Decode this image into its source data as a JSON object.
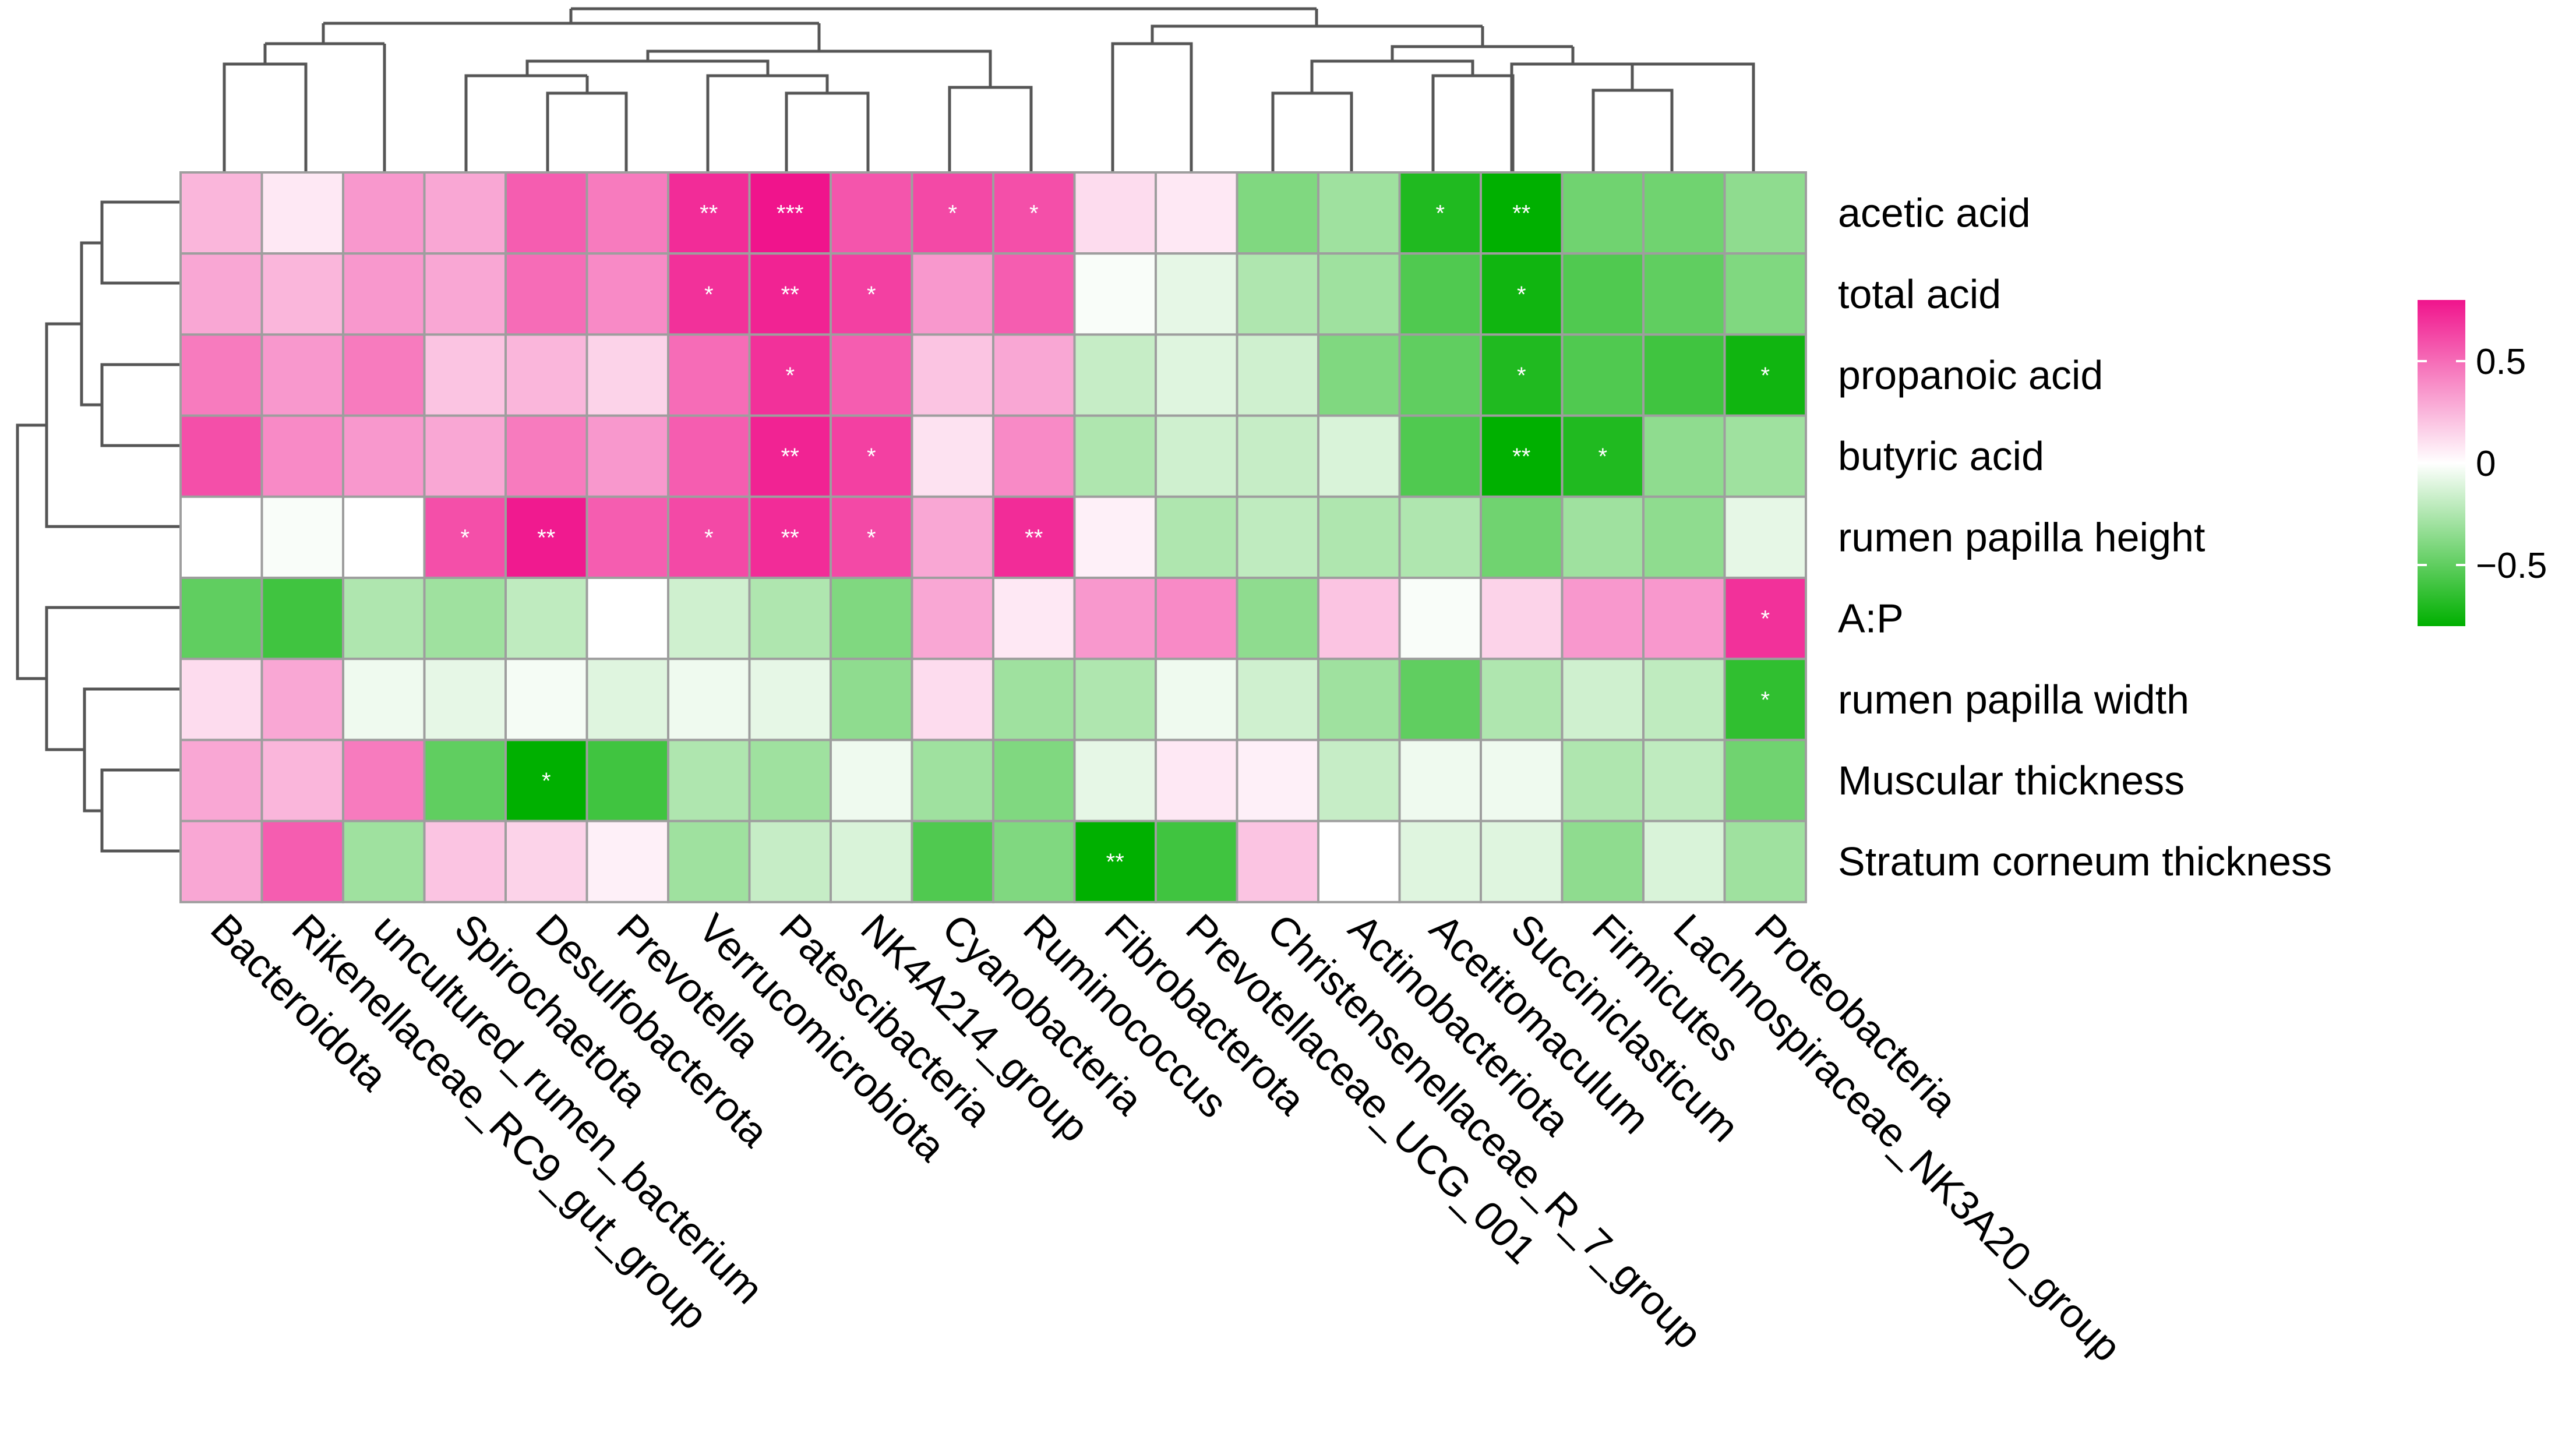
{
  "chart_data": {
    "type": "heatmap",
    "title": "",
    "rows": [
      "acetic acid",
      "total acid",
      "propanoic acid",
      "butyric acid",
      "rumen papilla height",
      "A:P",
      "rumen papilla width",
      "Muscular thickness",
      "Stratum corneum thickness"
    ],
    "columns": [
      "Bacteroidota",
      "Rikenellaceae_RC9_gut_group",
      "uncultured_rumen_bacterium",
      "Spirochaetota",
      "Desulfobacterota",
      "Prevotella",
      "Verrucomicrobiota",
      "Patescibacteria",
      "NK4A214_group",
      "Cyanobacteria",
      "Ruminococcus",
      "Fibrobacterota",
      "Prevotellaceae_UCG_001",
      "Christensenellaceae_R_7_group",
      "Actinobacteriota",
      "Acetitomaculum",
      "Succiniclasticum",
      "Firmicutes",
      "Lachnospiraceae_NK3A20_group",
      "Proteobacteria"
    ],
    "values": [
      [
        0.25,
        0.08,
        0.35,
        0.3,
        0.55,
        0.45,
        0.72,
        0.8,
        0.58,
        0.62,
        0.6,
        0.12,
        0.08,
        -0.4,
        -0.3,
        -0.7,
        -0.8,
        -0.45,
        -0.45,
        -0.35
      ],
      [
        0.3,
        0.25,
        0.35,
        0.3,
        0.5,
        0.4,
        0.7,
        0.75,
        0.65,
        0.35,
        0.55,
        -0.02,
        -0.08,
        -0.25,
        -0.3,
        -0.55,
        -0.75,
        -0.55,
        -0.5,
        -0.4
      ],
      [
        0.45,
        0.35,
        0.45,
        0.2,
        0.25,
        0.15,
        0.5,
        0.7,
        0.55,
        0.2,
        0.3,
        -0.18,
        -0.1,
        -0.15,
        -0.4,
        -0.5,
        -0.7,
        -0.55,
        -0.6,
        -0.75
      ],
      [
        0.6,
        0.4,
        0.35,
        0.3,
        0.45,
        0.35,
        0.55,
        0.75,
        0.65,
        0.1,
        0.4,
        -0.25,
        -0.15,
        -0.18,
        -0.12,
        -0.55,
        -0.8,
        -0.7,
        -0.35,
        -0.3
      ],
      [
        0.0,
        -0.02,
        0.0,
        0.6,
        0.78,
        0.55,
        0.62,
        0.72,
        0.62,
        0.3,
        0.72,
        0.05,
        -0.25,
        -0.2,
        -0.25,
        -0.25,
        -0.45,
        -0.3,
        -0.35,
        -0.08
      ],
      [
        -0.5,
        -0.6,
        -0.25,
        -0.3,
        -0.2,
        0.0,
        -0.15,
        -0.25,
        -0.4,
        0.3,
        0.08,
        0.35,
        0.4,
        -0.35,
        0.2,
        -0.02,
        0.15,
        0.35,
        0.35,
        0.7
      ],
      [
        0.12,
        0.3,
        -0.05,
        -0.08,
        -0.03,
        -0.1,
        -0.05,
        -0.08,
        -0.35,
        0.12,
        -0.3,
        -0.25,
        -0.05,
        -0.15,
        -0.3,
        -0.5,
        -0.25,
        -0.15,
        -0.2,
        -0.65
      ],
      [
        0.3,
        0.25,
        0.45,
        -0.5,
        -0.8,
        -0.6,
        -0.25,
        -0.3,
        -0.05,
        -0.3,
        -0.4,
        -0.08,
        0.08,
        0.05,
        -0.18,
        -0.05,
        -0.05,
        -0.25,
        -0.2,
        -0.45
      ],
      [
        0.3,
        0.55,
        -0.3,
        0.2,
        0.15,
        0.05,
        -0.3,
        -0.18,
        -0.12,
        -0.55,
        -0.4,
        -0.85,
        -0.6,
        0.2,
        0.0,
        -0.1,
        -0.1,
        -0.35,
        -0.12,
        -0.3
      ]
    ],
    "significance": [
      [
        "",
        "",
        "",
        "",
        "",
        "",
        "**",
        "***",
        "",
        "*",
        "*",
        "",
        "",
        "",
        "",
        "*",
        "**",
        "",
        "",
        ""
      ],
      [
        "",
        "",
        "",
        "",
        "",
        "",
        "*",
        "**",
        "*",
        "",
        "",
        "",
        "",
        "",
        "",
        "",
        "*",
        "",
        "",
        ""
      ],
      [
        "",
        "",
        "",
        "",
        "",
        "",
        "",
        "*",
        "",
        "",
        "",
        "",
        "",
        "",
        "",
        "",
        "*",
        "",
        "",
        "*"
      ],
      [
        "",
        "",
        "",
        "",
        "",
        "",
        "",
        "**",
        "*",
        "",
        "",
        "",
        "",
        "",
        "",
        "",
        "**",
        "*",
        "",
        ""
      ],
      [
        "",
        "",
        "",
        "*",
        "**",
        "",
        "*",
        "**",
        "*",
        "",
        "**",
        "",
        "",
        "",
        "",
        "",
        "",
        "",
        "",
        ""
      ],
      [
        "",
        "",
        "",
        "",
        "",
        "",
        "",
        "",
        "",
        "",
        "",
        "",
        "",
        "",
        "",
        "",
        "",
        "",
        "",
        "*"
      ],
      [
        "",
        "",
        "",
        "",
        "",
        "",
        "",
        "",
        "",
        "",
        "",
        "",
        "",
        "",
        "",
        "",
        "",
        "",
        "",
        "*"
      ],
      [
        "",
        "",
        "",
        "",
        "*",
        "",
        "",
        "",
        "",
        "",
        "",
        "",
        "",
        "",
        "",
        "",
        "",
        "",
        "",
        ""
      ],
      [
        "",
        "",
        "",
        "",
        "",
        "",
        "",
        "",
        "",
        "",
        "",
        "**",
        "",
        "",
        "",
        "",
        "",
        "",
        "",
        ""
      ]
    ],
    "color_scale": {
      "range": [
        -0.8,
        0.8
      ],
      "low_color": "#00b000",
      "mid_color": "#ffffff",
      "high_color": "#f0148c",
      "ticks": [
        0.5,
        0,
        -0.5
      ],
      "tick_labels": [
        "0.5",
        "0",
        "−0.5"
      ]
    },
    "legend_position": "right"
  }
}
